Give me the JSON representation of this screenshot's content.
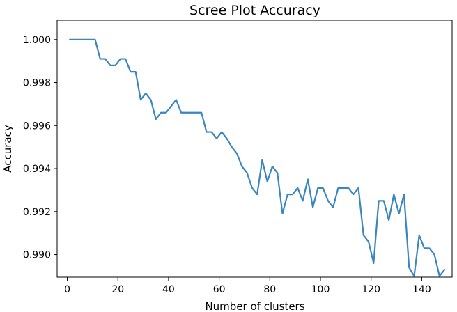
{
  "chart_data": {
    "type": "line",
    "title": "Scree Plot Accuracy",
    "xlabel": "Number of clusters",
    "ylabel": "Accuracy",
    "xlim": [
      -4,
      152
    ],
    "ylim": [
      0.98895,
      1.0009
    ],
    "xticks": [
      0,
      20,
      40,
      60,
      80,
      100,
      120,
      140
    ],
    "yticks": [
      0.99,
      0.992,
      0.994,
      0.996,
      0.998,
      1.0
    ],
    "ytick_format_decimals": 3,
    "grid": false,
    "legend": "none",
    "series": [
      {
        "color": "#3a86c0",
        "x": [
          1,
          3,
          5,
          7,
          9,
          11,
          13,
          15,
          17,
          19,
          21,
          23,
          25,
          27,
          29,
          31,
          33,
          35,
          37,
          39,
          41,
          43,
          45,
          47,
          49,
          51,
          53,
          55,
          57,
          59,
          61,
          63,
          65,
          67,
          69,
          71,
          73,
          75,
          77,
          79,
          81,
          83,
          85,
          87,
          89,
          91,
          93,
          95,
          97,
          99,
          101,
          103,
          105,
          107,
          109,
          111,
          113,
          115,
          117,
          119,
          121,
          123,
          125,
          127,
          129,
          131,
          133,
          135,
          137,
          139,
          141,
          143,
          145,
          147,
          149
        ],
        "y": [
          1.0,
          1.0,
          1.0,
          1.0,
          1.0,
          1.0,
          0.9991,
          0.9991,
          0.9988,
          0.9988,
          0.9991,
          0.9991,
          0.9985,
          0.9985,
          0.9972,
          0.9975,
          0.9972,
          0.9963,
          0.9966,
          0.9966,
          0.9969,
          0.9972,
          0.9966,
          0.9966,
          0.9966,
          0.9966,
          0.9966,
          0.9957,
          0.9957,
          0.9954,
          0.9957,
          0.9954,
          0.995,
          0.9947,
          0.9941,
          0.9938,
          0.9931,
          0.9928,
          0.9944,
          0.9934,
          0.9941,
          0.9938,
          0.9919,
          0.9928,
          0.9928,
          0.9931,
          0.9925,
          0.9935,
          0.9922,
          0.9931,
          0.9931,
          0.9925,
          0.9922,
          0.9931,
          0.9931,
          0.9931,
          0.9928,
          0.9931,
          0.9909,
          0.9906,
          0.9896,
          0.9925,
          0.9925,
          0.9916,
          0.9928,
          0.9919,
          0.9928,
          0.9894,
          0.989,
          0.9909,
          0.9903,
          0.9903,
          0.99,
          0.989,
          0.9893
        ]
      }
    ]
  }
}
